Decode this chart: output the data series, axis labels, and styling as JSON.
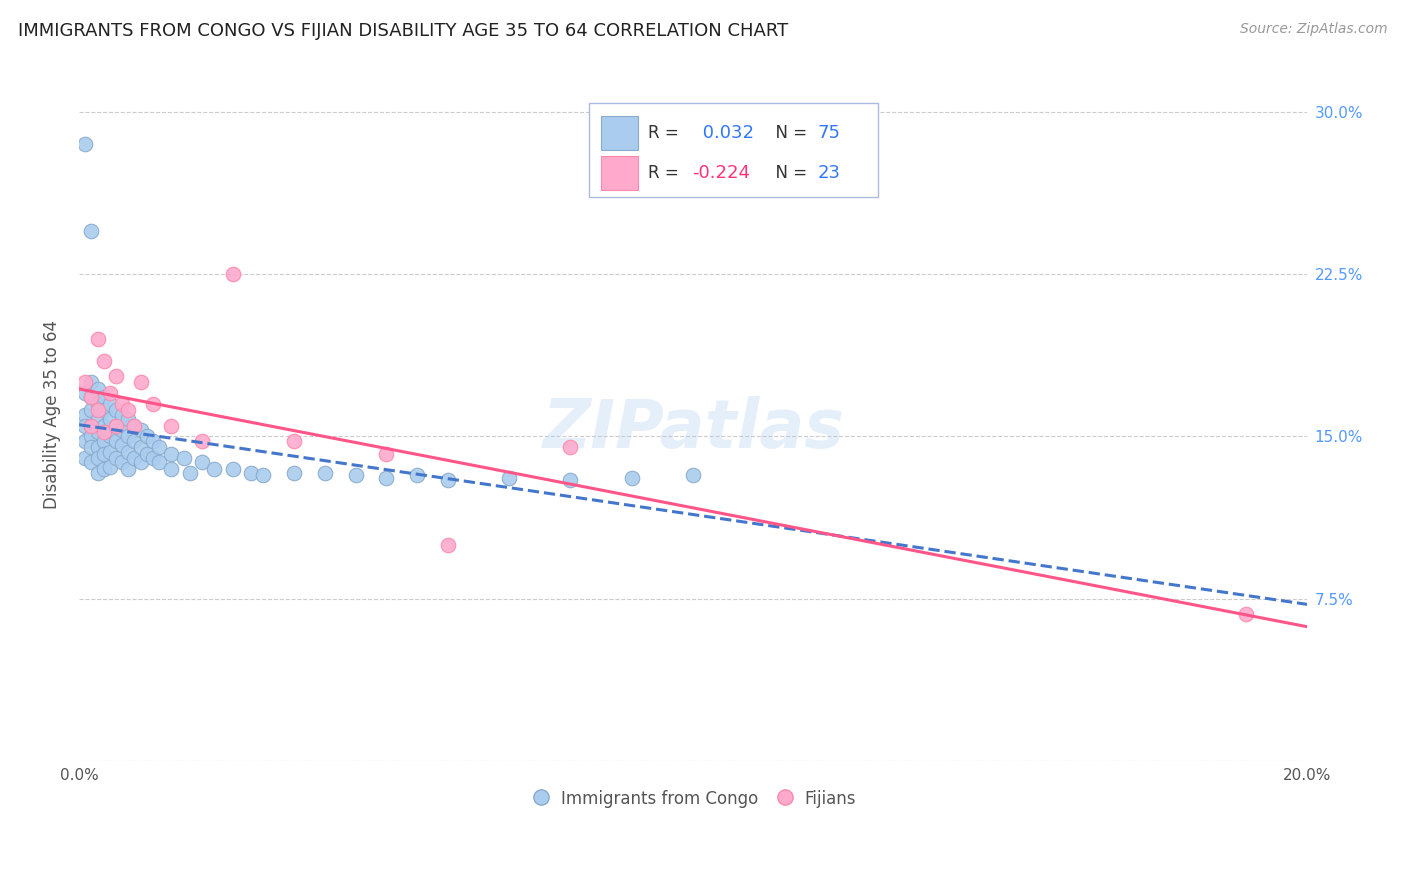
{
  "title": "IMMIGRANTS FROM CONGO VS FIJIAN DISABILITY AGE 35 TO 64 CORRELATION CHART",
  "source": "Source: ZipAtlas.com",
  "ylabel": "Disability Age 35 to 64",
  "xlim": [
    0.0,
    0.2
  ],
  "ylim": [
    0.0,
    0.32
  ],
  "x_ticks": [
    0.0,
    0.04,
    0.08,
    0.12,
    0.16,
    0.2
  ],
  "x_tick_labels": [
    "0.0%",
    "",
    "",
    "",
    "",
    "20.0%"
  ],
  "y_ticks": [
    0.0,
    0.075,
    0.15,
    0.225,
    0.3
  ],
  "y_tick_labels_right": [
    "",
    "7.5%",
    "15.0%",
    "22.5%",
    "30.0%"
  ],
  "watermark": "ZIPatlas",
  "blue_scatter_color": "#AACCEE",
  "blue_scatter_edge": "#88AACC",
  "pink_scatter_color": "#FFAACC",
  "pink_scatter_edge": "#FF88AA",
  "blue_line_color": "#4477CC",
  "pink_line_color": "#FF5588",
  "grid_color": "#CCCCCC",
  "right_tick_color": "#5599FF",
  "watermark_color": "#AACCEE",
  "congo_x": [
    0.001,
    0.001,
    0.001,
    0.001,
    0.001,
    0.002,
    0.002,
    0.002,
    0.002,
    0.002,
    0.002,
    0.002,
    0.003,
    0.003,
    0.003,
    0.003,
    0.003,
    0.003,
    0.003,
    0.004,
    0.004,
    0.004,
    0.004,
    0.004,
    0.004,
    0.005,
    0.005,
    0.005,
    0.005,
    0.005,
    0.006,
    0.006,
    0.006,
    0.006,
    0.007,
    0.007,
    0.007,
    0.007,
    0.008,
    0.008,
    0.008,
    0.008,
    0.009,
    0.009,
    0.009,
    0.01,
    0.01,
    0.01,
    0.011,
    0.011,
    0.012,
    0.012,
    0.013,
    0.013,
    0.015,
    0.015,
    0.017,
    0.018,
    0.02,
    0.022,
    0.025,
    0.028,
    0.03,
    0.035,
    0.04,
    0.045,
    0.05,
    0.055,
    0.06,
    0.07,
    0.08,
    0.09,
    0.1,
    0.001,
    0.002
  ],
  "congo_y": [
    0.17,
    0.16,
    0.155,
    0.148,
    0.14,
    0.175,
    0.168,
    0.162,
    0.155,
    0.15,
    0.145,
    0.138,
    0.172,
    0.165,
    0.158,
    0.152,
    0.145,
    0.14,
    0.133,
    0.168,
    0.162,
    0.155,
    0.148,
    0.142,
    0.135,
    0.165,
    0.158,
    0.15,
    0.143,
    0.136,
    0.162,
    0.155,
    0.148,
    0.14,
    0.16,
    0.153,
    0.146,
    0.138,
    0.158,
    0.15,
    0.143,
    0.135,
    0.155,
    0.148,
    0.14,
    0.153,
    0.145,
    0.138,
    0.15,
    0.142,
    0.148,
    0.14,
    0.145,
    0.138,
    0.142,
    0.135,
    0.14,
    0.133,
    0.138,
    0.135,
    0.135,
    0.133,
    0.132,
    0.133,
    0.133,
    0.132,
    0.131,
    0.132,
    0.13,
    0.131,
    0.13,
    0.131,
    0.132,
    0.285,
    0.245
  ],
  "fijian_x": [
    0.001,
    0.002,
    0.002,
    0.003,
    0.003,
    0.004,
    0.004,
    0.005,
    0.006,
    0.006,
    0.007,
    0.008,
    0.009,
    0.01,
    0.012,
    0.015,
    0.02,
    0.025,
    0.035,
    0.05,
    0.06,
    0.08,
    0.19
  ],
  "fijian_y": [
    0.175,
    0.168,
    0.155,
    0.195,
    0.162,
    0.185,
    0.152,
    0.17,
    0.178,
    0.155,
    0.165,
    0.162,
    0.155,
    0.175,
    0.165,
    0.155,
    0.148,
    0.225,
    0.148,
    0.142,
    0.1,
    0.145,
    0.068
  ]
}
